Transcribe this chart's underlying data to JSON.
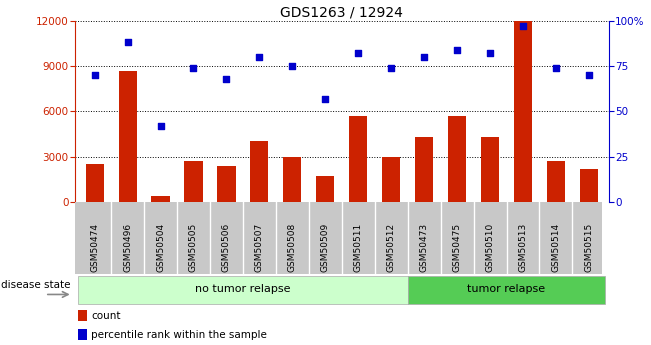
{
  "title": "GDS1263 / 12924",
  "categories": [
    "GSM50474",
    "GSM50496",
    "GSM50504",
    "GSM50505",
    "GSM50506",
    "GSM50507",
    "GSM50508",
    "GSM50509",
    "GSM50511",
    "GSM50512",
    "GSM50473",
    "GSM50475",
    "GSM50510",
    "GSM50513",
    "GSM50514",
    "GSM50515"
  ],
  "counts": [
    2500,
    8700,
    400,
    2700,
    2400,
    4000,
    3000,
    1700,
    5700,
    3000,
    4300,
    5700,
    4300,
    12000,
    2700,
    2200
  ],
  "percentiles": [
    70,
    88,
    42,
    74,
    68,
    80,
    75,
    57,
    82,
    74,
    80,
    84,
    82,
    97,
    74,
    70
  ],
  "bar_color": "#cc2200",
  "dot_color": "#0000cc",
  "ylim_left": [
    0,
    12000
  ],
  "ylim_right": [
    0,
    100
  ],
  "yticks_left": [
    0,
    3000,
    6000,
    9000,
    12000
  ],
  "yticks_right": [
    0,
    25,
    50,
    75,
    100
  ],
  "yticklabels_right": [
    "0",
    "25",
    "50",
    "75",
    "100%"
  ],
  "no_tumor_count": 10,
  "tumor_count": 6,
  "no_tumor_label": "no tumor relapse",
  "tumor_label": "tumor relapse",
  "disease_state_label": "disease state",
  "legend_count_label": "count",
  "legend_percentile_label": "percentile rank within the sample",
  "bg_color": "#ffffff",
  "xticklabel_bg": "#c8c8c8",
  "no_tumor_bg": "#ccffcc",
  "tumor_bg": "#55cc55",
  "grid_color": "#000000",
  "title_fontsize": 10,
  "tick_fontsize": 7.5,
  "label_fontsize": 8
}
